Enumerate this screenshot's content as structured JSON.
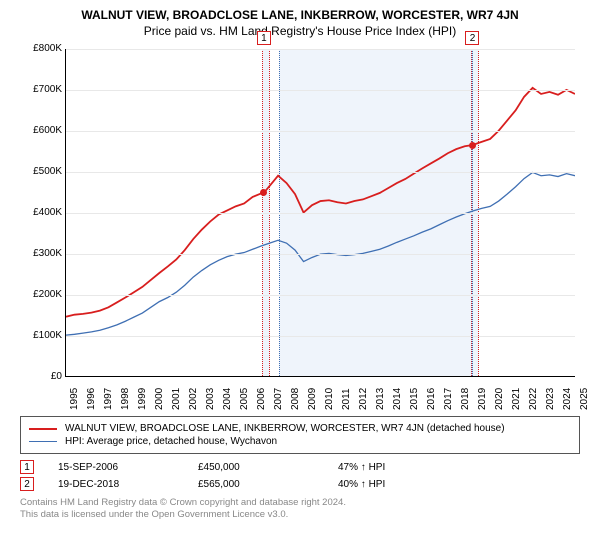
{
  "title": "WALNUT VIEW, BROADCLOSE LANE, INKBERROW, WORCESTER, WR7 4JN",
  "subtitle": "Price paid vs. HM Land Registry's House Price Index (HPI)",
  "chart": {
    "type": "line",
    "x_years": [
      1995,
      1996,
      1997,
      1998,
      1999,
      2000,
      2001,
      2002,
      2003,
      2004,
      2005,
      2006,
      2007,
      2008,
      2009,
      2010,
      2011,
      2012,
      2013,
      2014,
      2015,
      2016,
      2017,
      2018,
      2019,
      2020,
      2021,
      2022,
      2023,
      2024,
      2025
    ],
    "ylim": [
      0,
      800000
    ],
    "ytick_step": 100000,
    "yticks": [
      "£0",
      "£100K",
      "£200K",
      "£300K",
      "£400K",
      "£500K",
      "£600K",
      "£700K",
      "£800K"
    ],
    "grid_color": "#e8e8e8",
    "axis_color": "#000000",
    "background": "#ffffff",
    "label_fontsize": 10,
    "series": [
      {
        "name": "WALNUT VIEW, BROADCLOSE LANE, INKBERROW, WORCESTER, WR7 4JN (detached house)",
        "color": "#d81e1e",
        "width": 1.8,
        "points": [
          [
            1995.0,
            145000
          ],
          [
            1995.5,
            150000
          ],
          [
            1996.0,
            152000
          ],
          [
            1996.5,
            155000
          ],
          [
            1997.0,
            160000
          ],
          [
            1997.5,
            168000
          ],
          [
            1998.0,
            180000
          ],
          [
            1998.5,
            192000
          ],
          [
            1999.0,
            205000
          ],
          [
            1999.5,
            218000
          ],
          [
            2000.0,
            235000
          ],
          [
            2000.5,
            252000
          ],
          [
            2001.0,
            268000
          ],
          [
            2001.5,
            285000
          ],
          [
            2002.0,
            308000
          ],
          [
            2002.5,
            335000
          ],
          [
            2003.0,
            358000
          ],
          [
            2003.5,
            378000
          ],
          [
            2004.0,
            395000
          ],
          [
            2004.5,
            405000
          ],
          [
            2005.0,
            415000
          ],
          [
            2005.5,
            422000
          ],
          [
            2006.0,
            438000
          ],
          [
            2006.7,
            450000
          ],
          [
            2007.0,
            465000
          ],
          [
            2007.5,
            490000
          ],
          [
            2008.0,
            472000
          ],
          [
            2008.5,
            445000
          ],
          [
            2009.0,
            400000
          ],
          [
            2009.5,
            418000
          ],
          [
            2010.0,
            428000
          ],
          [
            2010.5,
            430000
          ],
          [
            2011.0,
            425000
          ],
          [
            2011.5,
            422000
          ],
          [
            2012.0,
            428000
          ],
          [
            2012.5,
            432000
          ],
          [
            2013.0,
            440000
          ],
          [
            2013.5,
            448000
          ],
          [
            2014.0,
            460000
          ],
          [
            2014.5,
            472000
          ],
          [
            2015.0,
            482000
          ],
          [
            2015.5,
            495000
          ],
          [
            2016.0,
            508000
          ],
          [
            2016.5,
            520000
          ],
          [
            2017.0,
            532000
          ],
          [
            2017.5,
            545000
          ],
          [
            2018.0,
            555000
          ],
          [
            2018.5,
            562000
          ],
          [
            2018.97,
            565000
          ],
          [
            2019.3,
            570000
          ],
          [
            2020.0,
            580000
          ],
          [
            2020.5,
            600000
          ],
          [
            2021.0,
            625000
          ],
          [
            2021.5,
            650000
          ],
          [
            2022.0,
            683000
          ],
          [
            2022.5,
            705000
          ],
          [
            2023.0,
            690000
          ],
          [
            2023.5,
            695000
          ],
          [
            2024.0,
            688000
          ],
          [
            2024.5,
            700000
          ],
          [
            2025.0,
            690000
          ]
        ]
      },
      {
        "name": "HPI: Average price, detached house, Wychavon",
        "color": "#3f6fb3",
        "width": 1.3,
        "points": [
          [
            1995.0,
            100000
          ],
          [
            1995.5,
            102000
          ],
          [
            1996.0,
            105000
          ],
          [
            1996.5,
            108000
          ],
          [
            1997.0,
            112000
          ],
          [
            1997.5,
            118000
          ],
          [
            1998.0,
            125000
          ],
          [
            1998.5,
            134000
          ],
          [
            1999.0,
            144000
          ],
          [
            1999.5,
            154000
          ],
          [
            2000.0,
            168000
          ],
          [
            2000.5,
            182000
          ],
          [
            2001.0,
            192000
          ],
          [
            2001.5,
            205000
          ],
          [
            2002.0,
            222000
          ],
          [
            2002.5,
            242000
          ],
          [
            2003.0,
            258000
          ],
          [
            2003.5,
            272000
          ],
          [
            2004.0,
            283000
          ],
          [
            2004.5,
            292000
          ],
          [
            2005.0,
            298000
          ],
          [
            2005.5,
            302000
          ],
          [
            2006.0,
            310000
          ],
          [
            2006.5,
            318000
          ],
          [
            2007.0,
            325000
          ],
          [
            2007.5,
            332000
          ],
          [
            2008.0,
            325000
          ],
          [
            2008.5,
            308000
          ],
          [
            2009.0,
            280000
          ],
          [
            2009.5,
            290000
          ],
          [
            2010.0,
            298000
          ],
          [
            2010.5,
            300000
          ],
          [
            2011.0,
            297000
          ],
          [
            2011.5,
            295000
          ],
          [
            2012.0,
            297000
          ],
          [
            2012.5,
            300000
          ],
          [
            2013.0,
            305000
          ],
          [
            2013.5,
            310000
          ],
          [
            2014.0,
            318000
          ],
          [
            2014.5,
            327000
          ],
          [
            2015.0,
            335000
          ],
          [
            2015.5,
            343000
          ],
          [
            2016.0,
            352000
          ],
          [
            2016.5,
            360000
          ],
          [
            2017.0,
            370000
          ],
          [
            2017.5,
            380000
          ],
          [
            2018.0,
            389000
          ],
          [
            2018.5,
            397000
          ],
          [
            2019.0,
            404000
          ],
          [
            2019.5,
            410000
          ],
          [
            2020.0,
            415000
          ],
          [
            2020.5,
            428000
          ],
          [
            2021.0,
            445000
          ],
          [
            2021.5,
            463000
          ],
          [
            2022.0,
            483000
          ],
          [
            2022.5,
            498000
          ],
          [
            2023.0,
            490000
          ],
          [
            2023.5,
            492000
          ],
          [
            2024.0,
            488000
          ],
          [
            2024.5,
            495000
          ],
          [
            2025.0,
            490000
          ]
        ]
      }
    ],
    "markers": [
      {
        "n": "1",
        "year": 2006.7,
        "value": 450000,
        "color": "#d81e1e"
      },
      {
        "n": "2",
        "year": 2018.97,
        "value": 565000,
        "color": "#d81e1e"
      }
    ],
    "shade_bands": [
      {
        "from": 2006.5,
        "to": 2006.9,
        "border": "#d81e1e"
      },
      {
        "from": 2007.5,
        "to": 2018.8,
        "border": "#3f6fb3"
      },
      {
        "from": 2018.8,
        "to": 2019.2,
        "border": "#d81e1e"
      }
    ]
  },
  "legend": [
    {
      "color": "#d81e1e",
      "width": 2,
      "label": "WALNUT VIEW, BROADCLOSE LANE, INKBERROW, WORCESTER, WR7 4JN (detached house)"
    },
    {
      "color": "#3f6fb3",
      "width": 1.3,
      "label": "HPI: Average price, detached house, Wychavon"
    }
  ],
  "sales": [
    {
      "n": "1",
      "color": "#d81e1e",
      "date": "15-SEP-2006",
      "price": "£450,000",
      "delta": "47% ↑ HPI"
    },
    {
      "n": "2",
      "color": "#d81e1e",
      "date": "19-DEC-2018",
      "price": "£565,000",
      "delta": "40% ↑ HPI"
    }
  ],
  "footer_lines": [
    "Contains HM Land Registry data © Crown copyright and database right 2024.",
    "This data is licensed under the Open Government Licence v3.0."
  ]
}
